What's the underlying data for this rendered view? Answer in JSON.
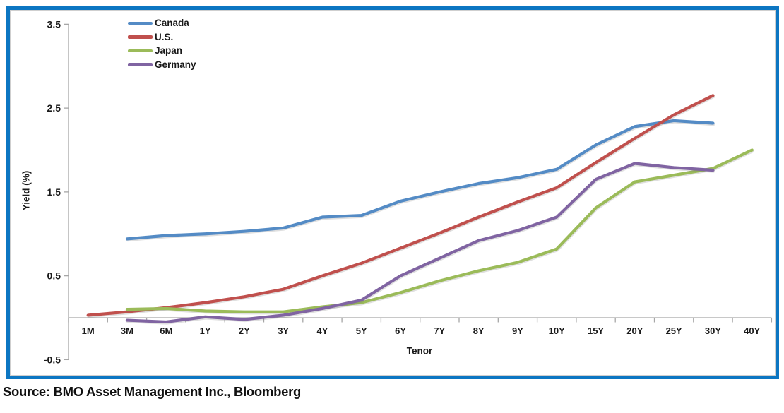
{
  "frame": {
    "border_color": "#0C76C2",
    "inner_border_color": "#CFCFCF"
  },
  "source": {
    "text": "Source: BMO Asset Management Inc., Bloomberg"
  },
  "chart_data": {
    "type": "line",
    "title": "",
    "xlabel": "Tenor",
    "ylabel": "Yield (%)",
    "ylim": [
      -0.5,
      3.5
    ],
    "y_ticks": [
      3.5,
      2.5,
      1.5,
      0.5,
      -0.5
    ],
    "y_tick_labels": [
      "3.5",
      "2.5",
      "1.5",
      "0.5",
      "-0.5"
    ],
    "grid": false,
    "legend_position": "top-left-inside",
    "axis_color": "#A6A6A6",
    "text_color": "#1A1A1A",
    "categories": [
      "1M",
      "3M",
      "6M",
      "1Y",
      "2Y",
      "3Y",
      "4Y",
      "5Y",
      "6Y",
      "7Y",
      "8Y",
      "9Y",
      "10Y",
      "15Y",
      "20Y",
      "25Y",
      "30Y",
      "40Y"
    ],
    "series": [
      {
        "name": "Canada",
        "color": "#548BC5",
        "values": [
          null,
          0.94,
          0.98,
          1.0,
          1.03,
          1.07,
          1.2,
          1.22,
          1.39,
          1.5,
          1.6,
          1.67,
          1.77,
          2.06,
          2.28,
          2.35,
          2.32,
          null
        ]
      },
      {
        "name": "U.S.",
        "color": "#C0504D",
        "values": [
          0.03,
          0.07,
          0.12,
          0.18,
          0.25,
          0.34,
          0.5,
          0.65,
          0.83,
          1.01,
          1.2,
          1.38,
          1.55,
          1.85,
          2.14,
          2.42,
          2.65,
          null
        ]
      },
      {
        "name": "Japan",
        "color": "#9BBB59",
        "values": [
          null,
          0.1,
          0.11,
          0.08,
          0.07,
          0.07,
          0.13,
          0.18,
          0.3,
          0.44,
          0.56,
          0.66,
          0.82,
          1.31,
          1.62,
          1.7,
          1.78,
          2.0
        ]
      },
      {
        "name": "Germany",
        "color": "#8064A2",
        "values": [
          null,
          -0.03,
          -0.05,
          0.01,
          -0.02,
          0.03,
          0.11,
          0.21,
          0.5,
          0.71,
          0.92,
          1.04,
          1.2,
          1.65,
          1.84,
          1.79,
          1.76,
          null
        ]
      }
    ]
  }
}
